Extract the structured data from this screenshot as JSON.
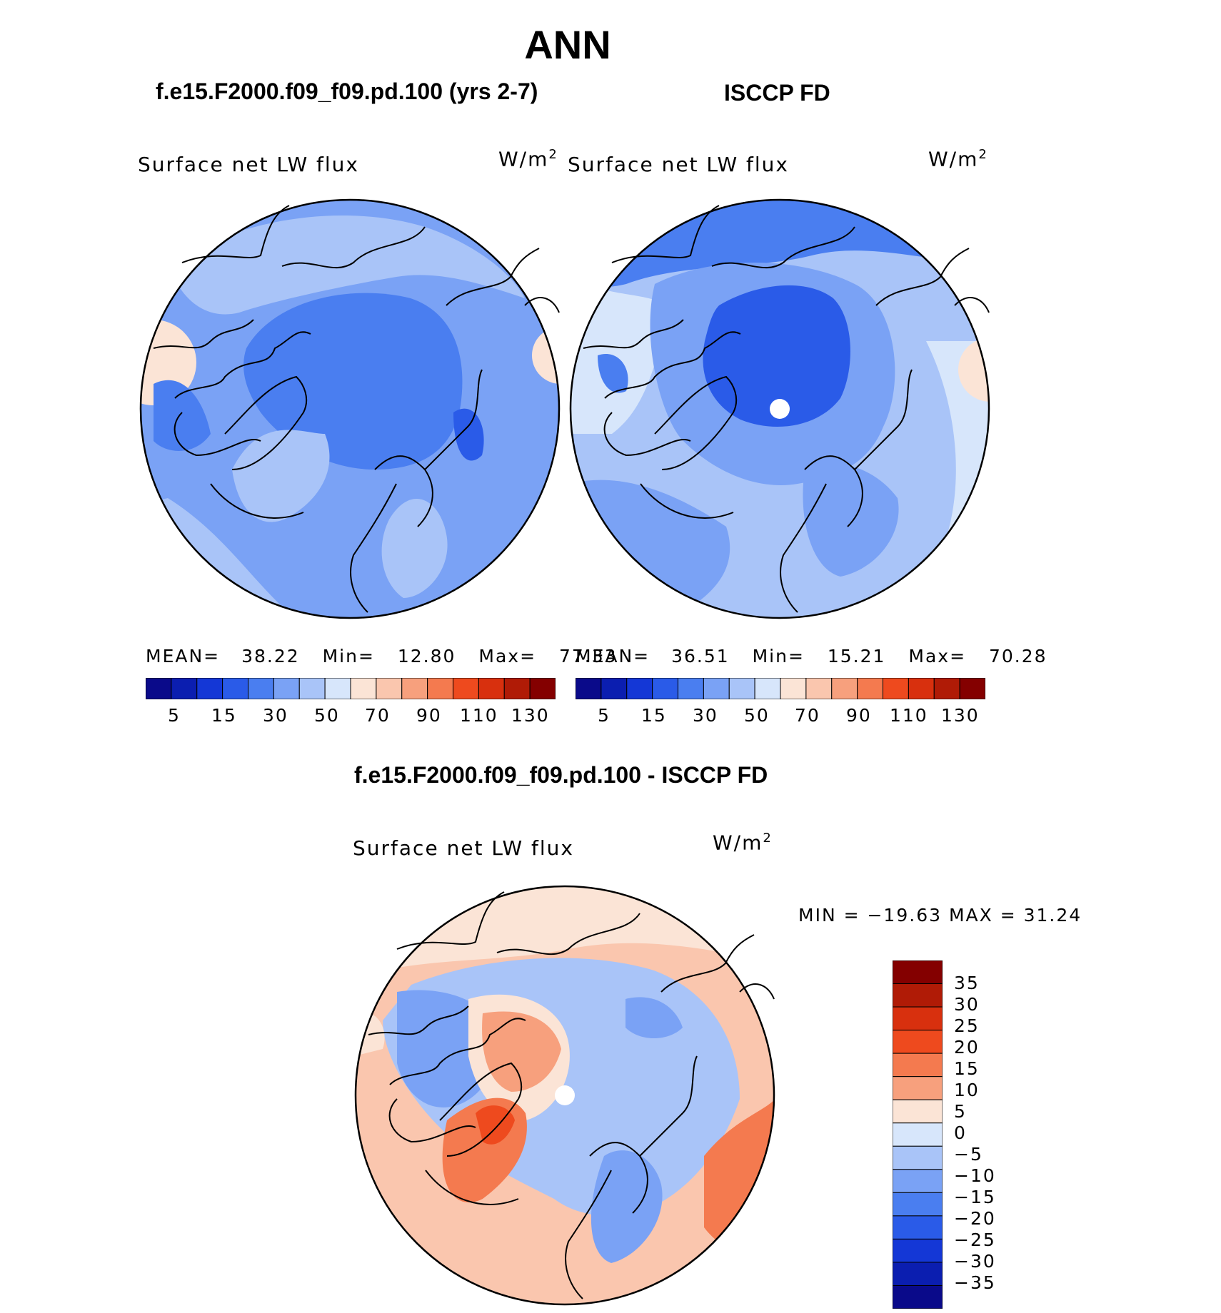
{
  "figure": {
    "title": "ANN"
  },
  "panels": [
    {
      "case_title": "f.e15.F2000.f09_f09.pd.100 (yrs 2-7)",
      "variable": "Surface net LW flux",
      "units": "W/m",
      "units_sup": "2",
      "stats": {
        "mean_label": "MEAN=",
        "mean": "38.22",
        "min_label": "Min=",
        "min": "12.80",
        "max_label": "Max=",
        "max": "77.33"
      },
      "colorbar_labels": [
        "5",
        "15",
        "30",
        "50",
        "70",
        "90",
        "110",
        "130"
      ]
    },
    {
      "case_title": "ISCCP FD",
      "variable": "Surface net LW flux",
      "units": "W/m",
      "units_sup": "2",
      "stats": {
        "mean_label": "MEAN=",
        "mean": "36.51",
        "min_label": "Min=",
        "min": "15.21",
        "max_label": "Max=",
        "max": "70.28"
      },
      "colorbar_labels": [
        "5",
        "15",
        "30",
        "50",
        "70",
        "90",
        "110",
        "130"
      ]
    }
  ],
  "difference": {
    "title": "f.e15.F2000.f09_f09.pd.100 - ISCCP FD",
    "variable": "Surface net LW flux",
    "units": "W/m",
    "units_sup": "2",
    "stats": "MIN = −19.63 MAX =   31.24",
    "colorbar_labels": [
      "35",
      "30",
      "25",
      "20",
      "15",
      "10",
      "5",
      "0",
      "−5",
      "−10",
      "−15",
      "−20",
      "−25",
      "−30",
      "−35"
    ]
  },
  "colors": {
    "abs_scale": [
      "#0a0a8a",
      "#0b1eb0",
      "#1437d6",
      "#2a5be8",
      "#4a7ef0",
      "#7aa2f5",
      "#a9c4f8",
      "#d7e6fb",
      "#fbe4d6",
      "#fac6ae",
      "#f7a07d",
      "#f47a4f",
      "#ee4a1e",
      "#d8300e",
      "#b01b06",
      "#840000"
    ],
    "diff_scale": [
      "#840000",
      "#b01b06",
      "#d8300e",
      "#ee4a1e",
      "#f47a4f",
      "#f7a07d",
      "#fbe4d6",
      "#d7e6fb",
      "#a9c4f8",
      "#7aa2f5",
      "#4a7ef0",
      "#2a5be8",
      "#1437d6",
      "#0b1eb0",
      "#0a0a8a"
    ]
  }
}
